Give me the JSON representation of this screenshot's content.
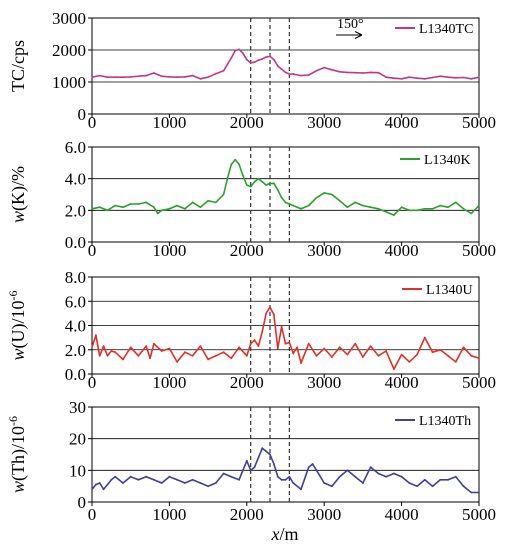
{
  "figure": {
    "direction_label": "150°",
    "xlabel_italic": "x",
    "xlabel_rest": "/m"
  },
  "chart_data": [
    {
      "type": "line",
      "ylabel": "TC/cps",
      "ylim": [
        0,
        3000
      ],
      "yticks": [
        "0",
        "1000",
        "2000",
        "3000"
      ],
      "xlim": [
        0,
        5000
      ],
      "xticks": [
        "0",
        "1000",
        "2000",
        "3000",
        "4000",
        "5000"
      ],
      "reference_lines_x": [
        2050,
        2300,
        2550
      ],
      "series": [
        {
          "name": "L1340TC",
          "color": "#c0378f",
          "x": [
            0,
            100,
            200,
            300,
            400,
            500,
            600,
            700,
            800,
            900,
            1000,
            1100,
            1200,
            1300,
            1400,
            1500,
            1600,
            1700,
            1750,
            1800,
            1850,
            1900,
            1950,
            2000,
            2050,
            2100,
            2150,
            2200,
            2250,
            2300,
            2350,
            2400,
            2450,
            2500,
            2550,
            2600,
            2700,
            2800,
            2900,
            3000,
            3100,
            3200,
            3300,
            3400,
            3500,
            3600,
            3700,
            3800,
            3900,
            4000,
            4100,
            4200,
            4300,
            4400,
            4500,
            4600,
            4700,
            4800,
            4900,
            5000
          ],
          "y": [
            1150,
            1200,
            1150,
            1150,
            1150,
            1160,
            1180,
            1200,
            1280,
            1180,
            1160,
            1150,
            1160,
            1200,
            1100,
            1150,
            1260,
            1350,
            1550,
            1750,
            1980,
            2020,
            1900,
            1700,
            1600,
            1620,
            1680,
            1720,
            1780,
            1800,
            1700,
            1500,
            1400,
            1300,
            1250,
            1250,
            1200,
            1220,
            1350,
            1450,
            1380,
            1320,
            1300,
            1290,
            1280,
            1300,
            1290,
            1150,
            1120,
            1100,
            1150,
            1120,
            1100,
            1140,
            1180,
            1150,
            1130,
            1140,
            1100,
            1150
          ]
        }
      ]
    },
    {
      "type": "line",
      "ylabel_prefix": "w",
      "ylabel_rest": "(K)/%",
      "ylim": [
        0,
        6
      ],
      "yticks": [
        "0.0",
        "2.0",
        "4.0",
        "6.0"
      ],
      "xlim": [
        0,
        5000
      ],
      "xticks": [
        "0",
        "1000",
        "2000",
        "3000",
        "4000",
        "5000"
      ],
      "reference_lines_x": [
        2050,
        2300,
        2550
      ],
      "series": [
        {
          "name": "L1340K",
          "color": "#2ca02c",
          "x": [
            0,
            100,
            200,
            300,
            400,
            500,
            600,
            700,
            800,
            850,
            900,
            1000,
            1100,
            1200,
            1300,
            1400,
            1500,
            1600,
            1700,
            1750,
            1800,
            1850,
            1900,
            1950,
            2000,
            2050,
            2100,
            2150,
            2200,
            2250,
            2300,
            2350,
            2400,
            2450,
            2500,
            2600,
            2700,
            2800,
            2900,
            3000,
            3100,
            3200,
            3300,
            3400,
            3500,
            3600,
            3700,
            3800,
            3900,
            4000,
            4100,
            4200,
            4300,
            4400,
            4500,
            4600,
            4700,
            4800,
            4900,
            5000
          ],
          "y": [
            2.1,
            2.2,
            2.0,
            2.3,
            2.2,
            2.4,
            2.4,
            2.5,
            2.2,
            1.8,
            2.0,
            2.1,
            2.3,
            2.1,
            2.5,
            2.2,
            2.6,
            2.5,
            3.0,
            4.0,
            4.9,
            5.2,
            4.9,
            4.2,
            3.6,
            3.5,
            3.8,
            4.0,
            3.8,
            3.6,
            3.7,
            3.7,
            3.3,
            2.8,
            2.5,
            2.3,
            2.1,
            2.3,
            2.8,
            3.1,
            3.0,
            2.6,
            2.2,
            2.5,
            2.3,
            2.2,
            2.1,
            1.9,
            1.7,
            2.2,
            2.0,
            2.0,
            2.1,
            2.1,
            2.3,
            2.2,
            2.5,
            2.1,
            1.8,
            2.3
          ]
        }
      ]
    },
    {
      "type": "line",
      "ylabel_prefix": "w",
      "ylabel_rest": "(U)/10",
      "ylabel_sup": "-6",
      "ylim": [
        0,
        8
      ],
      "yticks": [
        "0.0",
        "2.0",
        "4.0",
        "6.0",
        "8.0"
      ],
      "xlim": [
        0,
        5000
      ],
      "xticks": [
        "0",
        "1000",
        "2000",
        "3000",
        "4000",
        "5000"
      ],
      "reference_lines_x": [
        2050,
        2300,
        2550
      ],
      "series": [
        {
          "name": "L1340U",
          "color": "#e0302a",
          "x": [
            0,
            50,
            100,
            150,
            200,
            250,
            300,
            400,
            500,
            600,
            700,
            750,
            800,
            900,
            1000,
            1100,
            1200,
            1300,
            1400,
            1500,
            1600,
            1700,
            1800,
            1900,
            2000,
            2050,
            2100,
            2150,
            2200,
            2250,
            2300,
            2350,
            2400,
            2450,
            2500,
            2550,
            2600,
            2650,
            2700,
            2800,
            2900,
            3000,
            3100,
            3200,
            3300,
            3400,
            3500,
            3600,
            3700,
            3800,
            3900,
            4000,
            4100,
            4200,
            4300,
            4400,
            4500,
            4600,
            4700,
            4800,
            4900,
            5000
          ],
          "y": [
            2.2,
            3.2,
            1.5,
            2.3,
            1.5,
            1.9,
            1.8,
            1.2,
            2.2,
            1.5,
            2.3,
            1.3,
            2.5,
            1.9,
            2.1,
            1.0,
            1.8,
            1.5,
            2.3,
            1.2,
            1.5,
            1.8,
            1.3,
            2.2,
            1.5,
            2.5,
            2.8,
            2.3,
            3.5,
            5.0,
            5.5,
            4.9,
            2.1,
            3.9,
            2.5,
            2.6,
            1.7,
            2.2,
            0.9,
            2.5,
            1.5,
            2.1,
            1.4,
            2.2,
            1.6,
            2.5,
            1.4,
            2.3,
            1.5,
            1.9,
            0.4,
            1.6,
            1.0,
            1.6,
            3.0,
            1.8,
            2.0,
            1.5,
            1.0,
            2.2,
            1.5,
            1.3
          ]
        }
      ]
    },
    {
      "type": "line",
      "ylabel_prefix": "w",
      "ylabel_rest": "(Th)/10",
      "ylabel_sup": "-6",
      "ylim": [
        0,
        30
      ],
      "yticks": [
        "0",
        "10",
        "20",
        "30"
      ],
      "xlim": [
        0,
        5000
      ],
      "xticks": [
        "0",
        "1000",
        "2000",
        "3000",
        "4000",
        "5000"
      ],
      "reference_lines_x": [
        2050,
        2300,
        2550
      ],
      "series": [
        {
          "name": "L1340Th",
          "color": "#3f3f9f",
          "x": [
            0,
            50,
            100,
            150,
            200,
            250,
            300,
            400,
            500,
            600,
            700,
            800,
            900,
            1000,
            1100,
            1200,
            1300,
            1400,
            1500,
            1600,
            1700,
            1800,
            1900,
            1950,
            2000,
            2050,
            2100,
            2150,
            2200,
            2250,
            2300,
            2350,
            2400,
            2450,
            2500,
            2550,
            2600,
            2700,
            2800,
            2850,
            2900,
            3000,
            3100,
            3200,
            3300,
            3400,
            3500,
            3600,
            3700,
            3800,
            3900,
            4000,
            4100,
            4200,
            4300,
            4400,
            4500,
            4600,
            4700,
            4800,
            4900,
            5000
          ],
          "y": [
            4,
            5.5,
            6,
            4,
            5.5,
            7,
            8,
            6,
            8,
            7,
            8,
            7,
            6,
            8,
            7,
            6,
            7,
            6,
            5,
            6,
            9,
            8,
            7,
            10,
            13,
            10,
            11,
            14,
            17,
            16,
            15,
            12,
            8,
            7,
            7,
            8,
            6,
            4,
            11,
            12,
            10,
            6,
            5,
            8,
            10,
            8,
            6,
            11,
            9,
            8,
            9,
            8,
            6,
            5,
            7,
            5,
            7,
            7,
            8,
            5,
            3,
            3
          ]
        }
      ]
    }
  ]
}
